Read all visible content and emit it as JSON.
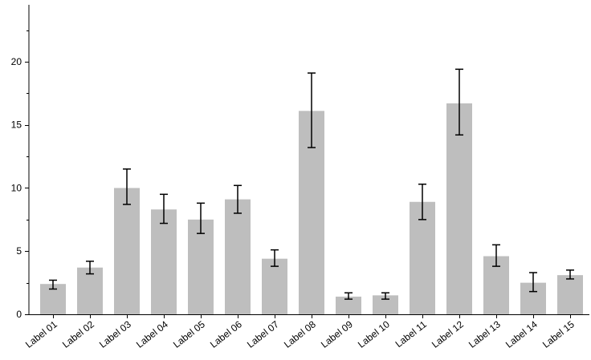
{
  "chart_data": {
    "type": "bar",
    "title": "",
    "xlabel": "",
    "ylabel": "",
    "ylim": [
      0,
      24.5
    ],
    "yticks": [
      0,
      5,
      10,
      15,
      20
    ],
    "grid": false,
    "bar_color": "#bebebe",
    "categories": [
      "Label 01",
      "Label 02",
      "Label 03",
      "Label 04",
      "Label 05",
      "Label 06",
      "Label 07",
      "Label 08",
      "Label 09",
      "Label 10",
      "Label 11",
      "Label 12",
      "Label 13",
      "Label 14",
      "Label 15"
    ],
    "values": [
      2.4,
      3.7,
      10.0,
      8.3,
      7.5,
      9.1,
      4.4,
      16.1,
      1.4,
      1.5,
      8.9,
      16.7,
      4.6,
      2.5,
      3.1
    ],
    "errors": [
      [
        2.0,
        2.7
      ],
      [
        3.2,
        4.2
      ],
      [
        8.7,
        11.5
      ],
      [
        7.2,
        9.5
      ],
      [
        6.4,
        8.8
      ],
      [
        8.0,
        10.2
      ],
      [
        3.8,
        5.1
      ],
      [
        13.2,
        19.1
      ],
      [
        1.2,
        1.7
      ],
      [
        1.2,
        1.7
      ],
      [
        7.5,
        10.3
      ],
      [
        14.2,
        19.4
      ],
      [
        3.8,
        5.5
      ],
      [
        1.8,
        3.3
      ],
      [
        2.8,
        3.5
      ]
    ]
  }
}
